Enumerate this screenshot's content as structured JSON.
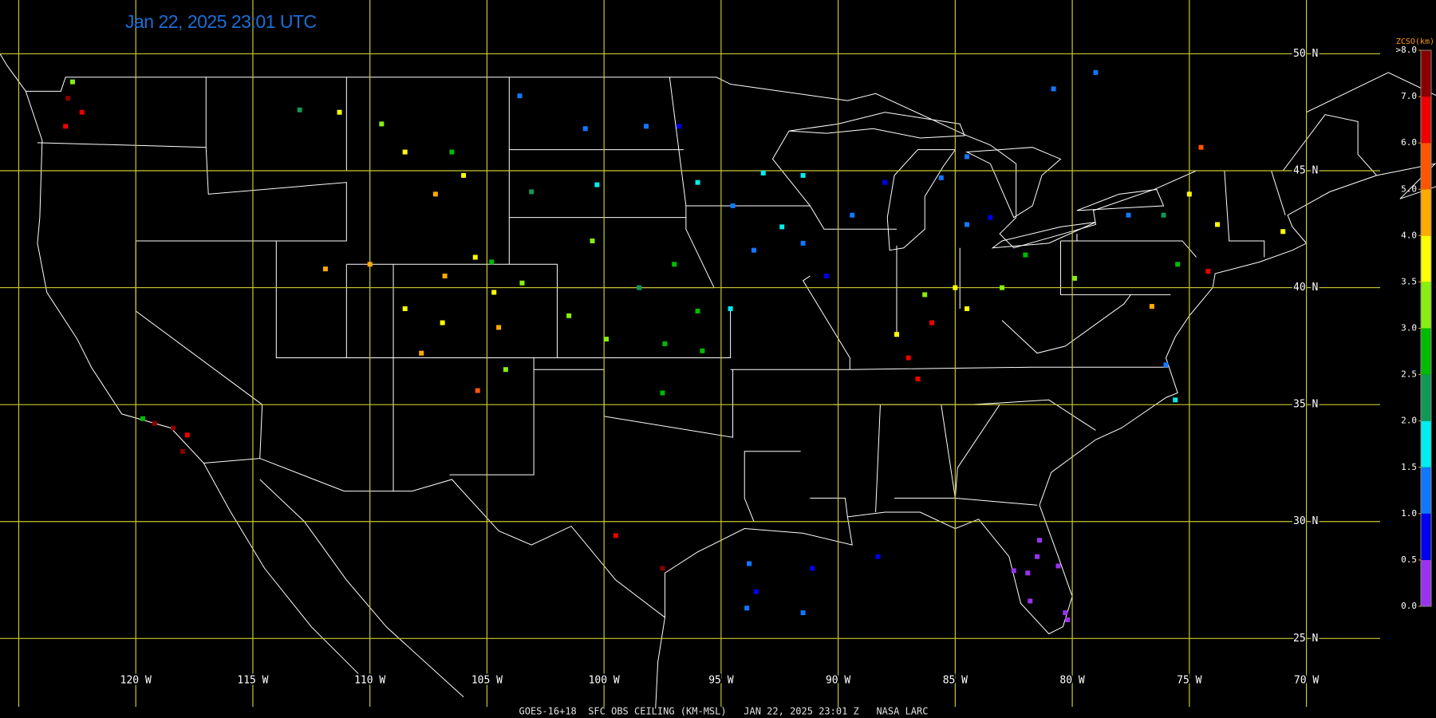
{
  "title": "Jan 22, 2025 23:01 UTC",
  "footer": "GOES-16+18  SFC OBS CEILING (KM-MSL)   JAN 22, 2025 23:01 Z   NASA LARC",
  "map": {
    "lonlim": [
      -125.8,
      -66.85
    ],
    "latlim": [
      21.6,
      52.3
    ],
    "lat_lines": [
      {
        "value": 25,
        "label": "25 N"
      },
      {
        "value": 30,
        "label": "30 N"
      },
      {
        "value": 35,
        "label": "35 N"
      },
      {
        "value": 40,
        "label": "40 N"
      },
      {
        "value": 45,
        "label": "45 N"
      },
      {
        "value": 50,
        "label": "50 N"
      }
    ],
    "lon_lines": [
      {
        "value": -125,
        "label": null
      },
      {
        "value": -120,
        "label": "120 W"
      },
      {
        "value": -115,
        "label": "115 W"
      },
      {
        "value": -110,
        "label": "110 W"
      },
      {
        "value": -105,
        "label": "105 W"
      },
      {
        "value": -100,
        "label": "100 W"
      },
      {
        "value": -95,
        "label": "95 W"
      },
      {
        "value": -90,
        "label": "90 W"
      },
      {
        "value": -85,
        "label": "85 W"
      },
      {
        "value": -80,
        "label": "80 W"
      },
      {
        "value": -75,
        "label": "75 W"
      },
      {
        "value": -70,
        "label": "70 W"
      }
    ],
    "grid_color": "#c8c832",
    "observations": {
      "lon": [
        -81.5,
        -81.9,
        -80.6,
        -81.8,
        -80.3,
        -82.5,
        -81.4,
        -80.2,
        -93.6,
        -91.5,
        -92.4,
        -89.4,
        -88.0,
        -91.5,
        -93.2,
        -96.0,
        -94.5,
        -90.5,
        -84.5,
        -83.5,
        -85.6,
        -84.5,
        -86.3,
        -85.0,
        -83.0,
        -84.5,
        -82.0,
        -87.5,
        -86.0,
        -77.6,
        -76.1,
        -75.0,
        -73.8,
        -71.0,
        -74.2,
        -76.6,
        -79.9,
        -75.5,
        -98.2,
        -100.8,
        -103.6,
        -96.8,
        -100.3,
        -103.1,
        -106.5,
        -109.5,
        -111.3,
        -113.0,
        -108.5,
        -106.0,
        -107.2,
        -105.5,
        -104.8,
        -100.5,
        -97.0,
        -98.5,
        -96.0,
        -94.6,
        -95.8,
        -97.4,
        -99.9,
        -101.5,
        -103.5,
        -104.7,
        -106.9,
        -104.5,
        -106.8,
        -107.8,
        -108.5,
        -110.0,
        -111.9,
        -105.4,
        -104.2,
        -97.5,
        -122.3,
        -122.9,
        -123.0,
        -122.7,
        -119.2,
        -118.4,
        -117.8,
        -119.7,
        -118.0,
        -93.8,
        -93.5,
        -91.1,
        -91.5,
        -88.3,
        -93.9,
        -97.5,
        -99.5,
        -87.0,
        -86.6,
        -75.6,
        -76.0,
        -79.0,
        -80.8,
        -74.5
      ],
      "lat": [
        28.5,
        27.8,
        28.1,
        26.6,
        26.1,
        27.9,
        29.2,
        25.8,
        41.6,
        41.9,
        42.6,
        43.1,
        44.5,
        44.8,
        44.9,
        44.5,
        43.5,
        40.5,
        42.7,
        43.0,
        44.7,
        45.6,
        39.7,
        40.0,
        40.0,
        39.1,
        41.4,
        38.0,
        38.5,
        43.1,
        43.1,
        44.0,
        42.7,
        42.4,
        40.7,
        39.2,
        40.4,
        41.0,
        46.9,
        46.8,
        48.2,
        46.9,
        44.4,
        44.1,
        45.8,
        47.0,
        47.5,
        47.6,
        45.8,
        44.8,
        44.0,
        41.3,
        41.1,
        42.0,
        41.0,
        40.0,
        39.0,
        39.1,
        37.3,
        37.6,
        37.8,
        38.8,
        40.2,
        39.8,
        38.5,
        38.3,
        40.5,
        37.2,
        39.1,
        41.0,
        40.8,
        35.6,
        36.5,
        35.5,
        47.5,
        48.1,
        46.9,
        48.8,
        34.2,
        34.0,
        33.7,
        34.4,
        33.0,
        28.2,
        27.0,
        28.0,
        26.1,
        28.5,
        26.3,
        28.0,
        29.4,
        37.0,
        36.1,
        35.2,
        36.7,
        49.2,
        48.5,
        46.0
      ],
      "values": [
        0.3,
        0.3,
        0.4,
        0.3,
        0.4,
        0.2,
        0.4,
        0.3,
        1.2,
        1.0,
        1.7,
        1.3,
        0.8,
        1.8,
        1.9,
        1.8,
        1.4,
        0.9,
        1.3,
        0.8,
        1.1,
        1.4,
        3.3,
        3.6,
        3.4,
        3.7,
        2.7,
        3.8,
        6.5,
        1.3,
        2.2,
        3.6,
        3.8,
        3.7,
        6.4,
        4.8,
        3.0,
        2.6,
        1.0,
        1.1,
        1.2,
        0.7,
        1.8,
        2.4,
        2.7,
        3.3,
        3.5,
        2.3,
        3.7,
        3.8,
        4.3,
        3.5,
        2.6,
        3.0,
        2.6,
        2.3,
        2.5,
        1.9,
        2.6,
        2.8,
        3.4,
        3.1,
        3.0,
        3.6,
        3.9,
        4.2,
        4.4,
        4.6,
        3.8,
        4.7,
        4.5,
        5.5,
        3.0,
        2.7,
        6.5,
        7.5,
        6.9,
        3.2,
        7.3,
        7.8,
        6.2,
        2.8,
        7.5,
        1.3,
        0.8,
        0.9,
        1.1,
        0.7,
        1.2,
        7.4,
        6.4,
        6.6,
        6.7,
        1.6,
        1.4,
        1.1,
        1.4,
        5.8
      ]
    }
  },
  "colorbar": {
    "title": "ZCSO(km)",
    "ticks": [
      {
        "value": 0,
        "label": "0.0"
      },
      {
        "value": 0.5,
        "label": "0.5"
      },
      {
        "value": 1,
        "label": "1.0"
      },
      {
        "value": 1.5,
        "label": "1.5"
      },
      {
        "value": 2,
        "label": "2.0"
      },
      {
        "value": 2.5,
        "label": "2.5"
      },
      {
        "value": 3,
        "label": "3.0"
      },
      {
        "value": 3.5,
        "label": "3.5"
      },
      {
        "value": 4,
        "label": "4.0"
      },
      {
        "value": 5,
        "label": "5.0"
      },
      {
        "value": 6,
        "label": "6.0"
      },
      {
        "value": 7,
        "label": "7.0"
      },
      {
        "value": 8,
        "label": ">8.0"
      }
    ],
    "colors": [
      "#9933ee",
      "#0000ee",
      "#1177ff",
      "#00eeee",
      "#119955",
      "#00bb00",
      "#88ee11",
      "#ffff00",
      "#ffaa00",
      "#ff5500",
      "#ee0000",
      "#880000"
    ]
  }
}
